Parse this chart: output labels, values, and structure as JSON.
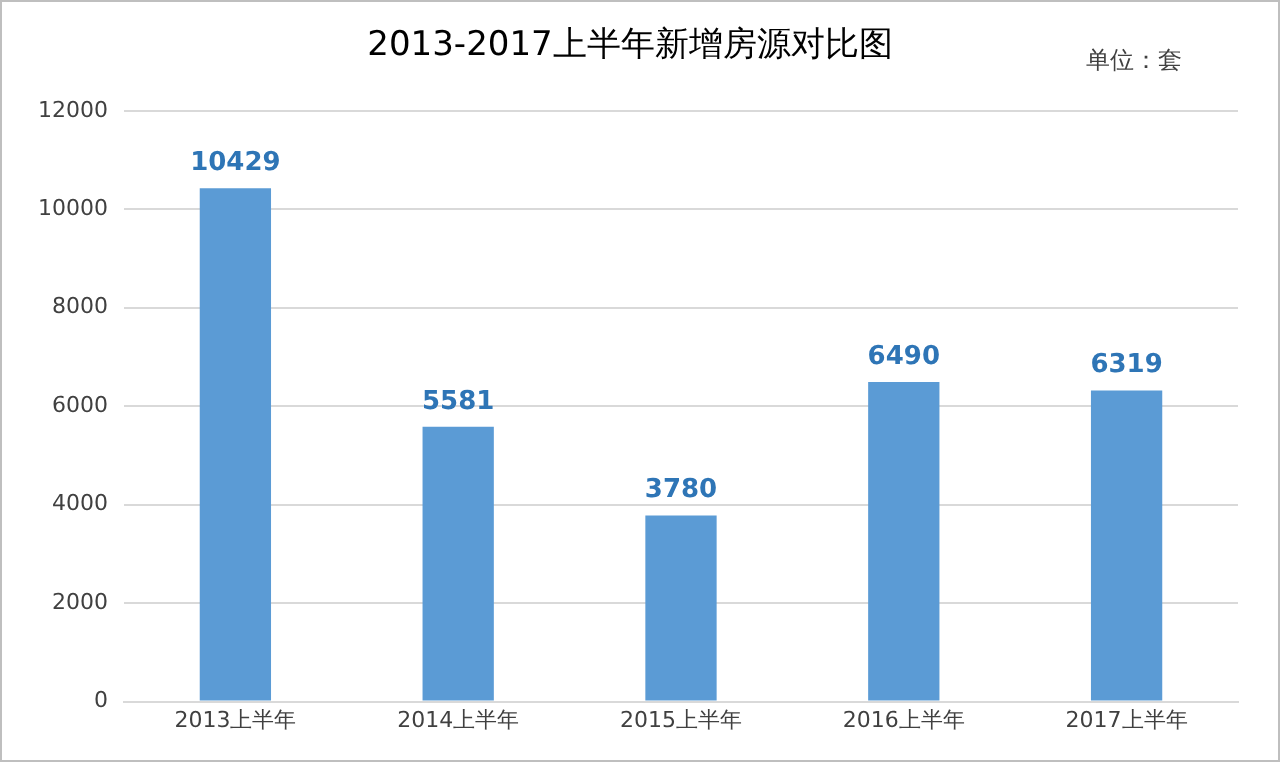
{
  "chart_data": {
    "type": "bar",
    "title": "2013-2017上半年新增房源对比图",
    "categories": [
      "2013上半年",
      "2014上半年",
      "2015上半年",
      "2016上半年",
      "2017上半年"
    ],
    "values": [
      10429,
      5581,
      3780,
      6490,
      6319
    ],
    "color": "#5b9bd5",
    "ylim": [
      0,
      12000
    ],
    "yticks": [
      0,
      2000,
      4000,
      6000,
      8000,
      10000,
      12000
    ],
    "grid": "y",
    "data_labels": true,
    "annotations": [
      "单位：套"
    ]
  }
}
